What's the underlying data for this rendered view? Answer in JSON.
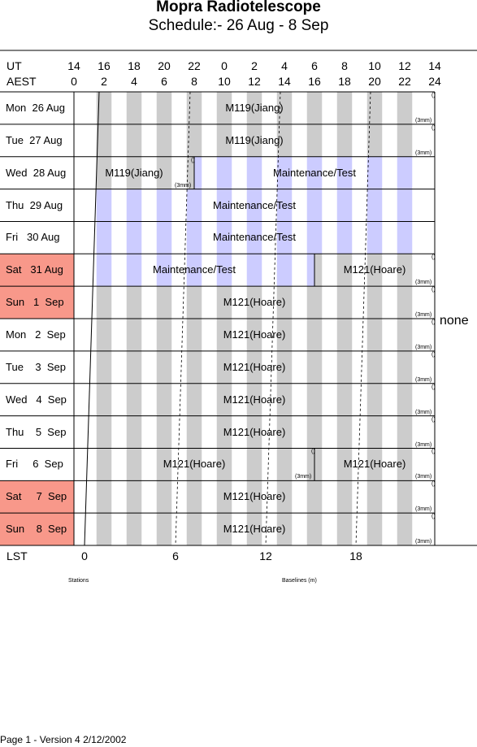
{
  "title": "Mopra Radiotelescope",
  "subtitle": "Schedule:- 26 Aug - 8  Sep",
  "axes": {
    "ut_label": "UT",
    "aest_label": "AEST",
    "ut_ticks": [
      "14",
      "16",
      "18",
      "20",
      "22",
      "0",
      "2",
      "4",
      "6",
      "8",
      "10",
      "12",
      "14"
    ],
    "aest_ticks": [
      "0",
      "2",
      "4",
      "6",
      "8",
      "10",
      "12",
      "14",
      "16",
      "18",
      "20",
      "22",
      "24"
    ],
    "lst_label": "LST",
    "lst_ticks": [
      "0",
      "6",
      "12",
      "18"
    ]
  },
  "days": [
    {
      "label": "Mon  26 Aug",
      "weekend": false,
      "blocks": [
        {
          "start": 0,
          "end": 24,
          "label": "M119(Jiang)",
          "type": "obs",
          "freq": "(3mm)"
        }
      ]
    },
    {
      "label": "Tue  27 Aug",
      "weekend": false,
      "blocks": [
        {
          "start": 0,
          "end": 24,
          "label": "M119(Jiang)",
          "type": "obs",
          "freq": "(3mm)"
        }
      ]
    },
    {
      "label": "Wed  28 Aug",
      "weekend": false,
      "blocks": [
        {
          "start": 0,
          "end": 8,
          "label": "M119(Jiang)",
          "type": "obs",
          "freq": "(3mm)"
        },
        {
          "start": 8,
          "end": 24,
          "label": "Maintenance/Test",
          "type": "maint",
          "freq": ""
        }
      ]
    },
    {
      "label": "Thu  29 Aug",
      "weekend": false,
      "blocks": [
        {
          "start": 0,
          "end": 24,
          "label": "Maintenance/Test",
          "type": "maint",
          "freq": ""
        }
      ]
    },
    {
      "label": "Fri   30 Aug",
      "weekend": false,
      "blocks": [
        {
          "start": 0,
          "end": 24,
          "label": "Maintenance/Test",
          "type": "maint",
          "freq": ""
        }
      ]
    },
    {
      "label": "Sat   31 Aug",
      "weekend": true,
      "blocks": [
        {
          "start": 0,
          "end": 16,
          "label": "Maintenance/Test",
          "type": "maint",
          "freq": ""
        },
        {
          "start": 16,
          "end": 24,
          "label": "M121(Hoare)",
          "type": "obs",
          "freq": "(3mm)"
        }
      ]
    },
    {
      "label": "Sun   1  Sep",
      "weekend": true,
      "blocks": [
        {
          "start": 0,
          "end": 24,
          "label": "M121(Hoare)",
          "type": "obs",
          "freq": "(3mm)"
        }
      ]
    },
    {
      "label": "Mon   2  Sep",
      "weekend": false,
      "blocks": [
        {
          "start": 0,
          "end": 24,
          "label": "M121(Hoare)",
          "type": "obs",
          "freq": "(3mm)"
        }
      ]
    },
    {
      "label": "Tue    3  Sep",
      "weekend": false,
      "blocks": [
        {
          "start": 0,
          "end": 24,
          "label": "M121(Hoare)",
          "type": "obs",
          "freq": "(3mm)"
        }
      ]
    },
    {
      "label": "Wed   4  Sep",
      "weekend": false,
      "blocks": [
        {
          "start": 0,
          "end": 24,
          "label": "M121(Hoare)",
          "type": "obs",
          "freq": "(3mm)"
        }
      ]
    },
    {
      "label": "Thu    5  Sep",
      "weekend": false,
      "blocks": [
        {
          "start": 0,
          "end": 24,
          "label": "M121(Hoare)",
          "type": "obs",
          "freq": "(3mm)"
        }
      ]
    },
    {
      "label": "Fri     6  Sep",
      "weekend": false,
      "blocks": [
        {
          "start": 0,
          "end": 16,
          "label": "M121(Hoare)",
          "type": "obs",
          "freq": "(3mm)"
        },
        {
          "start": 16,
          "end": 24,
          "label": "M121(Hoare)",
          "type": "obs",
          "freq": "(3mm)"
        }
      ]
    },
    {
      "label": "Sat     7  Sep",
      "weekend": true,
      "blocks": [
        {
          "start": 0,
          "end": 24,
          "label": "M121(Hoare)",
          "type": "obs",
          "freq": "(3mm)"
        }
      ]
    },
    {
      "label": "Sun    8  Sep",
      "weekend": true,
      "blocks": [
        {
          "start": 0,
          "end": 24,
          "label": "M121(Hoare)",
          "type": "obs",
          "freq": "(3mm)"
        }
      ]
    }
  ],
  "freq_marker": "()",
  "side_note": "none",
  "stations_label": "Stations",
  "baselines_label": "Baselines (m)",
  "footer": "Page 1 - Version 4  2/12/2002",
  "colors": {
    "weekend": "#f8988a",
    "night_band": "#cccccc",
    "maint_band": "#ccccff",
    "line": "#000000"
  }
}
